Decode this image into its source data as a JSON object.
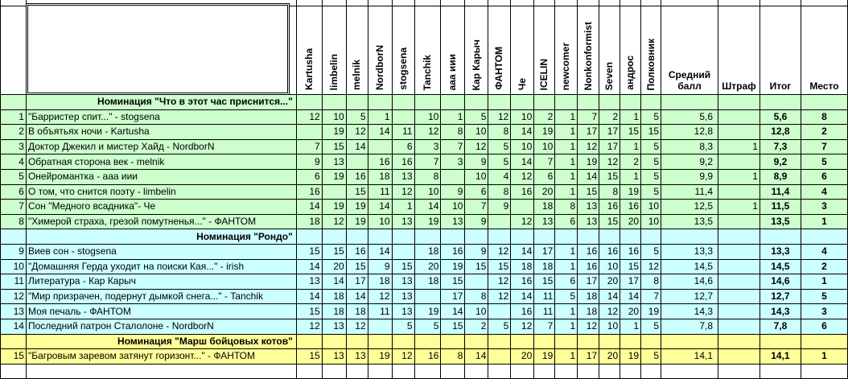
{
  "columns": {
    "judges": [
      "Kartusha",
      "limbelin",
      "melnik",
      "NordborN",
      "stogsena",
      "Tanchik",
      "ааа иии",
      "Кар Карыч",
      "ФАНТОМ",
      "Че",
      "ICELIN",
      "newcomer",
      "Nonkonformist",
      "Seven",
      "андрос",
      "Полковник"
    ],
    "average": "Средний балл",
    "penalty": "Штраф",
    "total": "Итог",
    "place": "Место"
  },
  "colors": {
    "green": "#ccffcc",
    "blue": "#ccffff",
    "yellow": "#ffff99"
  },
  "sections": [
    {
      "title": "Номинация \"Что в этот час приснится...\"",
      "color": "green",
      "rows": [
        {
          "n": "1",
          "title": "\"Барристер спит...\" - stogsena",
          "scores": [
            "12",
            "10",
            "5",
            "1",
            "",
            "10",
            "1",
            "5",
            "12",
            "10",
            "2",
            "1",
            "7",
            "2",
            "1",
            "5"
          ],
          "avg": "5,6",
          "penalty": "",
          "total": "5,6",
          "place": "8"
        },
        {
          "n": "2",
          "title": "В объятьях ночи - Kartusha",
          "scores": [
            "",
            "19",
            "12",
            "14",
            "11",
            "12",
            "8",
            "10",
            "8",
            "14",
            "19",
            "1",
            "17",
            "17",
            "15",
            "15"
          ],
          "avg": "12,8",
          "penalty": "",
          "total": "12,8",
          "place": "2"
        },
        {
          "n": "3",
          "title": "Доктор Джекил и мистер Хайд - NordborN",
          "scores": [
            "7",
            "15",
            "14",
            "",
            "6",
            "3",
            "7",
            "12",
            "5",
            "10",
            "10",
            "1",
            "12",
            "17",
            "1",
            "5"
          ],
          "avg": "8,3",
          "penalty": "1",
          "total": "7,3",
          "place": "7"
        },
        {
          "n": "4",
          "title": "Обратная сторона век - melnik",
          "scores": [
            "9",
            "13",
            "",
            "16",
            "16",
            "7",
            "3",
            "9",
            "5",
            "14",
            "7",
            "1",
            "19",
            "12",
            "2",
            "5"
          ],
          "avg": "9,2",
          "penalty": "",
          "total": "9,2",
          "place": "5"
        },
        {
          "n": "5",
          "title": "Онейромантка - ааа иии",
          "scores": [
            "6",
            "19",
            "16",
            "18",
            "13",
            "8",
            "",
            "10",
            "4",
            "12",
            "6",
            "1",
            "14",
            "15",
            "1",
            "5"
          ],
          "avg": "9,9",
          "penalty": "1",
          "total": "8,9",
          "place": "6"
        },
        {
          "n": "6",
          "title": "О том, что снится поэту - limbelin",
          "scores": [
            "16",
            "",
            "15",
            "11",
            "12",
            "10",
            "9",
            "6",
            "8",
            "16",
            "20",
            "1",
            "15",
            "8",
            "19",
            "5"
          ],
          "avg": "11,4",
          "penalty": "",
          "total": "11,4",
          "place": "4"
        },
        {
          "n": "7",
          "title": "Сон \"Медного всадника\"- Че",
          "scores": [
            "14",
            "19",
            "19",
            "14",
            "1",
            "14",
            "10",
            "7",
            "9",
            "",
            "18",
            "8",
            "13",
            "16",
            "16",
            "10"
          ],
          "avg": "12,5",
          "penalty": "1",
          "total": "11,5",
          "place": "3"
        },
        {
          "n": "8",
          "title": "\"Химерой страха, грезой помутненья...\" - ФАНТОМ",
          "scores": [
            "18",
            "12",
            "19",
            "10",
            "13",
            "19",
            "13",
            "9",
            "",
            "12",
            "13",
            "6",
            "13",
            "15",
            "20",
            "10"
          ],
          "avg": "13,5",
          "penalty": "",
          "total": "13,5",
          "place": "1"
        }
      ]
    },
    {
      "title": "Номинация \"Рондо\"",
      "color": "blue",
      "rows": [
        {
          "n": "9",
          "title": "Виев сон - stogsena",
          "scores": [
            "15",
            "15",
            "16",
            "14",
            "",
            "18",
            "16",
            "9",
            "12",
            "14",
            "17",
            "1",
            "16",
            "16",
            "16",
            "5"
          ],
          "avg": "13,3",
          "penalty": "",
          "total": "13,3",
          "place": "4"
        },
        {
          "n": "10",
          "title": "\"Домашняя Герда уходит на поиски Кая...\" - irish",
          "scores": [
            "14",
            "20",
            "15",
            "9",
            "15",
            "20",
            "19",
            "15",
            "15",
            "18",
            "18",
            "1",
            "16",
            "10",
            "15",
            "12"
          ],
          "avg": "14,5",
          "penalty": "",
          "total": "14,5",
          "place": "2"
        },
        {
          "n": "11",
          "title": "Литература - Кар Карыч",
          "scores": [
            "13",
            "14",
            "17",
            "18",
            "13",
            "18",
            "15",
            "",
            "12",
            "16",
            "15",
            "6",
            "17",
            "20",
            "17",
            "8"
          ],
          "avg": "14,6",
          "penalty": "",
          "total": "14,6",
          "place": "1"
        },
        {
          "n": "12",
          "title": "\"Мир призрачен, подернут дымкой снега...\" - Tanchik",
          "scores": [
            "14",
            "18",
            "14",
            "12",
            "13",
            "",
            "17",
            "8",
            "12",
            "14",
            "11",
            "5",
            "18",
            "14",
            "14",
            "7"
          ],
          "avg": "12,7",
          "penalty": "",
          "total": "12,7",
          "place": "5"
        },
        {
          "n": "13",
          "title": "Моя печаль - ФАНТОМ",
          "scores": [
            "15",
            "18",
            "18",
            "11",
            "13",
            "19",
            "14",
            "10",
            "",
            "16",
            "11",
            "1",
            "18",
            "12",
            "20",
            "19"
          ],
          "avg": "14,3",
          "penalty": "",
          "total": "14,3",
          "place": "3"
        },
        {
          "n": "14",
          "title": "Последний патрон Сталолоне - NordborN",
          "scores": [
            "12",
            "13",
            "12",
            "",
            "5",
            "5",
            "15",
            "2",
            "5",
            "12",
            "7",
            "1",
            "12",
            "10",
            "1",
            "5"
          ],
          "avg": "7,8",
          "penalty": "",
          "total": "7,8",
          "place": "6"
        }
      ]
    },
    {
      "title": "Номинация \"Марш бойцовых котов\"",
      "color": "yellow",
      "rows": [
        {
          "n": "15",
          "title": "\"Багровым заревом затянут горизонт...\" - ФАНТОМ",
          "scores": [
            "15",
            "13",
            "13",
            "19",
            "12",
            "16",
            "8",
            "14",
            "",
            "20",
            "19",
            "1",
            "17",
            "20",
            "19",
            "5"
          ],
          "avg": "14,1",
          "penalty": "",
          "total": "14,1",
          "place": "1"
        }
      ]
    }
  ]
}
